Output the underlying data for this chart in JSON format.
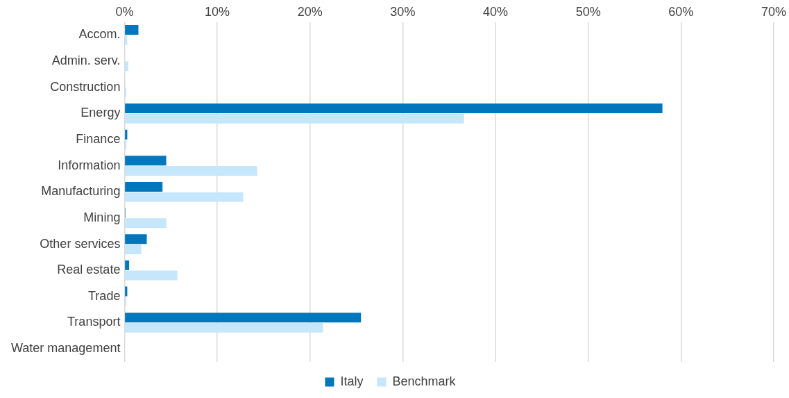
{
  "chart_data": {
    "type": "bar",
    "orientation": "horizontal",
    "categories": [
      "Accom.",
      "Admin. serv.",
      "Construction",
      "Energy",
      "Finance",
      "Information",
      "Manufacturing",
      "Mining",
      "Other services",
      "Real estate",
      "Trade",
      "Transport",
      "Water management"
    ],
    "series": [
      {
        "name": "Italy",
        "color": "#0077bd",
        "values": [
          1.5,
          0,
          0,
          58,
          0.3,
          4.5,
          4.1,
          0.1,
          2.4,
          0.5,
          0.3,
          25.5,
          0
        ]
      },
      {
        "name": "Benchmark",
        "color": "#c5e6fb",
        "values": [
          0.3,
          0.4,
          0.2,
          36.6,
          0.2,
          14.3,
          12.8,
          4.5,
          1.8,
          5.7,
          0.2,
          21.4,
          0
        ]
      }
    ],
    "xlim": [
      0,
      70
    ],
    "xticks": [
      {
        "value": 0,
        "label": "0%"
      },
      {
        "value": 10,
        "label": "10%"
      },
      {
        "value": 20,
        "label": "20%"
      },
      {
        "value": 30,
        "label": "30%"
      },
      {
        "value": 40,
        "label": "40%"
      },
      {
        "value": 50,
        "label": "50%"
      },
      {
        "value": 60,
        "label": "60%"
      },
      {
        "value": 70,
        "label": "70%"
      }
    ],
    "grid": "x",
    "legend": "bottom"
  }
}
